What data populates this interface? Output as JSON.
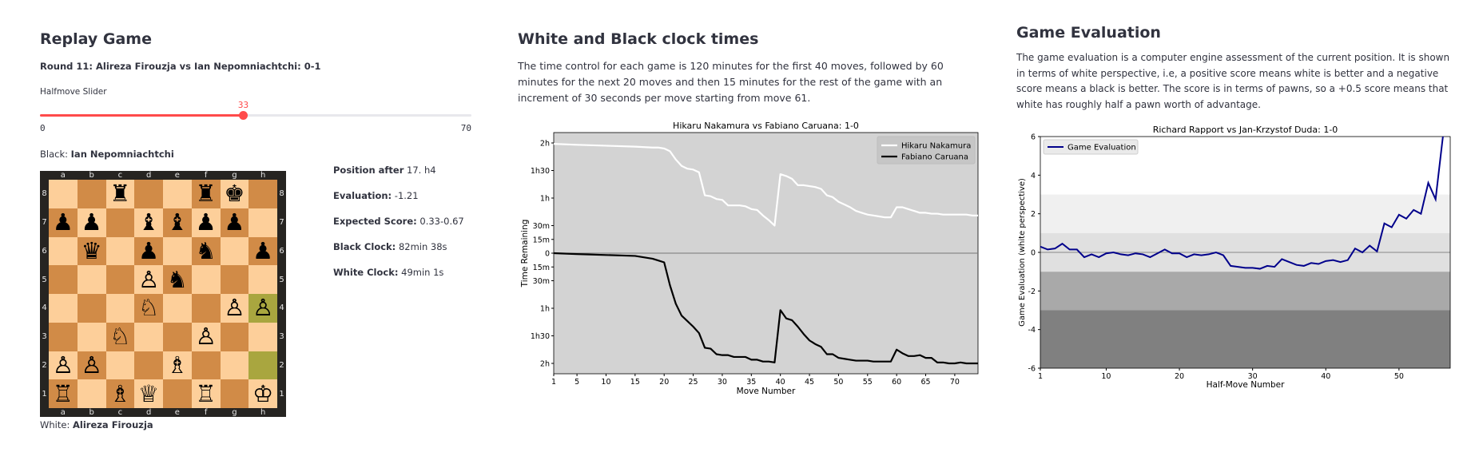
{
  "replay": {
    "title": "Replay Game",
    "round": "Round 11: Alireza Firouzja vs Ian Nepomniachtchi: 0-1",
    "slider_label": "Halfmove Slider",
    "slider_value": "33",
    "slider_min": "0",
    "slider_max": "70",
    "slider_fraction": 0.4714,
    "black_label": "Black:",
    "black_name": "Ian Nepomniachtchi",
    "white_label": "White:",
    "white_name": "Alireza Firouzja",
    "info": [
      {
        "label": "Position after",
        "value": "17. h4"
      },
      {
        "label": "Evaluation:",
        "value": "-1.21"
      },
      {
        "label": "Expected Score:",
        "value": "0.33-0.67"
      },
      {
        "label": "Black Clock:",
        "value": "82min 38s"
      },
      {
        "label": "White Clock:",
        "value": "49min 1s"
      }
    ],
    "board": {
      "files": [
        "a",
        "b",
        "c",
        "d",
        "e",
        "f",
        "g",
        "h"
      ],
      "ranks": [
        "8",
        "7",
        "6",
        "5",
        "4",
        "3",
        "2",
        "1"
      ],
      "light_color": "#fdcf9a",
      "dark_color": "#d18b47",
      "highlight_color": "#a9a63f",
      "highlights": [
        "h4",
        "h2"
      ],
      "pieces": [
        {
          "sq": "c8",
          "glyph": "♜",
          "color": "black"
        },
        {
          "sq": "f8",
          "glyph": "♜",
          "color": "black"
        },
        {
          "sq": "g8",
          "glyph": "♚",
          "color": "black"
        },
        {
          "sq": "a7",
          "glyph": "♟",
          "color": "black"
        },
        {
          "sq": "b7",
          "glyph": "♟",
          "color": "black"
        },
        {
          "sq": "d7",
          "glyph": "♝",
          "color": "black"
        },
        {
          "sq": "e7",
          "glyph": "♝",
          "color": "black"
        },
        {
          "sq": "f7",
          "glyph": "♟",
          "color": "black"
        },
        {
          "sq": "g7",
          "glyph": "♟",
          "color": "black"
        },
        {
          "sq": "b6",
          "glyph": "♛",
          "color": "black"
        },
        {
          "sq": "d6",
          "glyph": "♟",
          "color": "black"
        },
        {
          "sq": "f6",
          "glyph": "♞",
          "color": "black"
        },
        {
          "sq": "h6",
          "glyph": "♟",
          "color": "black"
        },
        {
          "sq": "e5",
          "glyph": "♞",
          "color": "black"
        },
        {
          "sq": "d5",
          "glyph": "♙",
          "color": "white"
        },
        {
          "sq": "d4",
          "glyph": "♘",
          "color": "white"
        },
        {
          "sq": "g4",
          "glyph": "♙",
          "color": "white"
        },
        {
          "sq": "h4",
          "glyph": "♙",
          "color": "white"
        },
        {
          "sq": "c3",
          "glyph": "♘",
          "color": "white"
        },
        {
          "sq": "f3",
          "glyph": "♙",
          "color": "white"
        },
        {
          "sq": "a2",
          "glyph": "♙",
          "color": "white"
        },
        {
          "sq": "b2",
          "glyph": "♙",
          "color": "white"
        },
        {
          "sq": "e2",
          "glyph": "♗",
          "color": "white"
        },
        {
          "sq": "a1",
          "glyph": "♖",
          "color": "white"
        },
        {
          "sq": "c1",
          "glyph": "♗",
          "color": "white"
        },
        {
          "sq": "d1",
          "glyph": "♕",
          "color": "white"
        },
        {
          "sq": "f1",
          "glyph": "♖",
          "color": "white"
        },
        {
          "sq": "h1",
          "glyph": "♔",
          "color": "white"
        }
      ]
    },
    "accent": "#ff4b4b"
  },
  "clock": {
    "title": "White and Black clock times",
    "description": "The time control for each game is 120 minutes for the first 40 moves, followed by 60 minutes for the next 20 moves and then 15 minutes for the rest of the game with an increment of 30 seconds per move starting from move 61."
  },
  "evaluation": {
    "title": "Game Evaluation",
    "description": "The game evaluation is a computer engine assessment of the current position. It is shown in terms of white perspective, i.e, a positive score means white is better and a negative score means a black is better. The score is in terms of pawns, so a +0.5 score means that white has roughly half a pawn worth of advantage."
  },
  "chart_data": [
    {
      "type": "line",
      "title": "Hikaru Nakamura vs Fabiano Caruana: 1-0",
      "xlabel": "Move Number",
      "ylabel": "Time Remaining",
      "x_ticks": [
        1,
        5,
        10,
        15,
        20,
        25,
        30,
        35,
        40,
        45,
        50,
        55,
        60,
        65,
        70
      ],
      "xlim": [
        1,
        74
      ],
      "y_tick_labels_top": [
        "2h",
        "1h30",
        "1h",
        "30m",
        "15m",
        "0"
      ],
      "y_tick_labels_bottom": [
        "15m",
        "30m",
        "1h",
        "1h30",
        "2h"
      ],
      "background": "#d3d3d3",
      "legend": "top-right",
      "series": [
        {
          "name": "Hikaru Nakamura",
          "color": "#ffffff",
          "panel": "top",
          "x": [
            1,
            5,
            10,
            15,
            18,
            19,
            20,
            21,
            22,
            23,
            24,
            25,
            26,
            27,
            28,
            29,
            30,
            31,
            32,
            33,
            34,
            35,
            36,
            37,
            38,
            39,
            40,
            41,
            42,
            43,
            44,
            45,
            46,
            47,
            48,
            49,
            50,
            51,
            52,
            53,
            54,
            55,
            56,
            57,
            58,
            59,
            60,
            61,
            62,
            63,
            64,
            65,
            66,
            67,
            68,
            69,
            70,
            71,
            72,
            73,
            74
          ],
          "y": [
            119,
            118,
            117,
            116,
            115,
            115,
            114,
            111,
            102,
            95,
            92,
            91,
            88,
            63,
            62,
            59,
            58,
            52,
            52,
            52,
            51,
            48,
            47,
            41,
            36,
            30,
            86,
            84,
            81,
            74,
            74,
            73,
            72,
            70,
            63,
            61,
            56,
            53,
            50,
            46,
            44,
            42,
            41,
            40,
            39,
            39,
            50,
            50,
            48,
            46,
            44,
            44,
            43,
            43,
            42,
            42,
            42,
            42,
            42,
            41,
            41
          ]
        },
        {
          "name": "Fabiano Caruana",
          "color": "#000000",
          "panel": "bottom",
          "x": [
            1,
            5,
            10,
            15,
            18,
            19,
            20,
            21,
            22,
            23,
            24,
            25,
            26,
            27,
            28,
            29,
            30,
            31,
            32,
            33,
            34,
            35,
            36,
            37,
            38,
            39,
            40,
            41,
            42,
            43,
            44,
            45,
            46,
            47,
            48,
            49,
            50,
            51,
            52,
            53,
            54,
            55,
            56,
            57,
            58,
            59,
            60,
            61,
            62,
            63,
            64,
            65,
            66,
            67,
            68,
            69,
            70,
            71,
            72,
            73,
            74
          ],
          "y": [
            120,
            119,
            118,
            117,
            114,
            112,
            110,
            85,
            65,
            52,
            46,
            40,
            33,
            17,
            16,
            10,
            9,
            9,
            7,
            7,
            7,
            4,
            4,
            2,
            2,
            1,
            58,
            49,
            47,
            40,
            32,
            25,
            21,
            18,
            10,
            10,
            6,
            5,
            4,
            3,
            3,
            3,
            2,
            2,
            2,
            2,
            15,
            11,
            8,
            8,
            9,
            6,
            6,
            1,
            1,
            0,
            0,
            1,
            0,
            0,
            0
          ]
        }
      ]
    },
    {
      "type": "line",
      "title": "Richard Rapport vs Jan-Krzystof Duda: 1-0",
      "xlabel": "Half-Move Number",
      "ylabel": "Game Evaluation (white perspective)",
      "x_ticks": [
        1,
        10,
        20,
        30,
        40,
        50
      ],
      "y_ticks": [
        6,
        4,
        2,
        0,
        -2,
        -4,
        -6
      ],
      "xlim": [
        1,
        57
      ],
      "ylim": [
        -6,
        6
      ],
      "legend": "top-left",
      "bands": [
        {
          "from": 1,
          "to": 3,
          "color": "#f0f0f0"
        },
        {
          "from": -1,
          "to": 1,
          "color": "#e0e0e0"
        },
        {
          "from": -3,
          "to": -1,
          "color": "#a9a9a9"
        },
        {
          "from": -6,
          "to": -3,
          "color": "#808080"
        }
      ],
      "series": [
        {
          "name": "Game Evaluation",
          "color": "#00008b",
          "x": [
            1,
            2,
            3,
            4,
            5,
            6,
            7,
            8,
            9,
            10,
            11,
            12,
            13,
            14,
            15,
            16,
            17,
            18,
            19,
            20,
            21,
            22,
            23,
            24,
            25,
            26,
            27,
            28,
            29,
            30,
            31,
            32,
            33,
            34,
            35,
            36,
            37,
            38,
            39,
            40,
            41,
            42,
            43,
            44,
            45,
            46,
            47,
            48,
            49,
            50,
            51,
            52,
            53,
            54,
            55,
            56,
            57
          ],
          "y": [
            0.3,
            0.15,
            0.2,
            0.45,
            0.15,
            0.15,
            -0.25,
            -0.1,
            -0.25,
            -0.05,
            0.0,
            -0.1,
            -0.15,
            -0.05,
            -0.1,
            -0.25,
            -0.05,
            0.15,
            -0.05,
            -0.05,
            -0.25,
            -0.1,
            -0.15,
            -0.1,
            0.0,
            -0.15,
            -0.7,
            -0.75,
            -0.8,
            -0.8,
            -0.85,
            -0.7,
            -0.75,
            -0.35,
            -0.5,
            -0.65,
            -0.7,
            -0.55,
            -0.6,
            -0.45,
            -0.4,
            -0.5,
            -0.4,
            0.2,
            0.0,
            0.35,
            0.05,
            1.5,
            1.3,
            1.95,
            1.75,
            2.2,
            2.0,
            3.6,
            2.75,
            6.0,
            6.3
          ]
        }
      ]
    }
  ]
}
